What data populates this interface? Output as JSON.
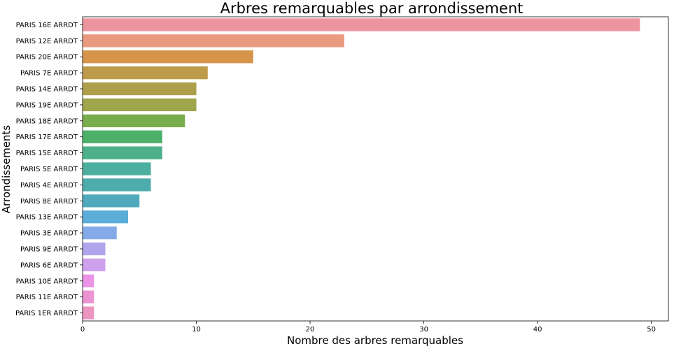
{
  "chart_data": {
    "type": "bar",
    "orientation": "horizontal",
    "title": "Arbres remarquables par arrondissement",
    "xlabel": "Nombre des arbres remarquables",
    "ylabel": "Arrondissements",
    "xlim": [
      0,
      51.5
    ],
    "xticks": [
      0,
      10,
      20,
      30,
      40,
      50
    ],
    "grid": false,
    "categories": [
      "PARIS 16E ARRDT",
      "PARIS 12E ARRDT",
      "PARIS 20E ARRDT",
      "PARIS 7E ARRDT",
      "PARIS 14E ARRDT",
      "PARIS 19E ARRDT",
      "PARIS 18E ARRDT",
      "PARIS 17E ARRDT",
      "PARIS 15E ARRDT",
      "PARIS 5E ARRDT",
      "PARIS 4E ARRDT",
      "PARIS 8E ARRDT",
      "PARIS 13E ARRDT",
      "PARIS 3E ARRDT",
      "PARIS 9E ARRDT",
      "PARIS 6E ARRDT",
      "PARIS 10E ARRDT",
      "PARIS 11E ARRDT",
      "PARIS 1ER ARRDT"
    ],
    "values": [
      49,
      23,
      15,
      11,
      10,
      10,
      9,
      7,
      7,
      6,
      6,
      5,
      4,
      3,
      2,
      2,
      1,
      1,
      1
    ],
    "colors": [
      "#ed959f",
      "#ea9a7f",
      "#d6954b",
      "#bd9b4b",
      "#aea04a",
      "#9fa54a",
      "#79ac4a",
      "#4cb069",
      "#4db08b",
      "#4daf9f",
      "#4eacac",
      "#50aabb",
      "#5aaed8",
      "#84abe8",
      "#b0a5ec",
      "#cfa1ec",
      "#eb93e6",
      "#ec94d2",
      "#ec95c0"
    ]
  }
}
